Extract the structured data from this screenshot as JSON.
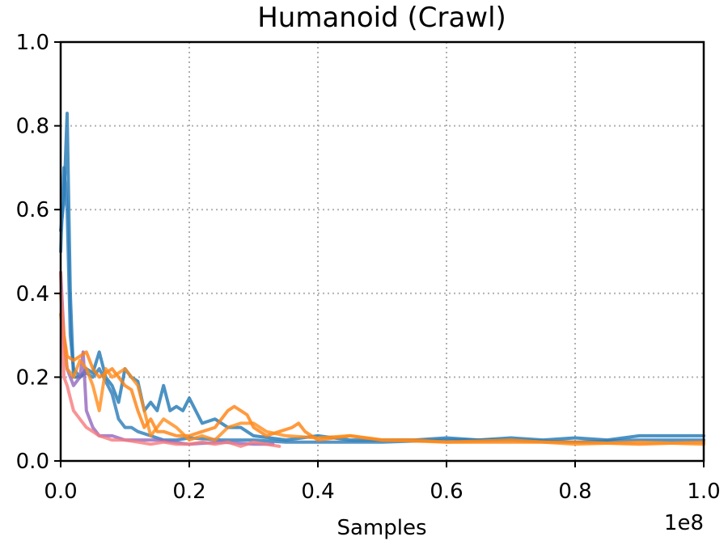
{
  "chart_data": {
    "type": "line",
    "title": "Humanoid (Crawl)",
    "xlabel": "Samples",
    "ylabel": "",
    "x_offset_text": "1e8",
    "xlim": [
      0.0,
      1.0
    ],
    "ylim": [
      0.0,
      1.0
    ],
    "x_ticks": [
      0.0,
      0.2,
      0.4,
      0.6,
      0.8,
      1.0
    ],
    "y_ticks": [
      0.0,
      0.2,
      0.4,
      0.6,
      0.8,
      1.0
    ],
    "x_tick_labels": [
      "0.0",
      "0.2",
      "0.4",
      "0.6",
      "0.8",
      "1.0"
    ],
    "y_tick_labels": [
      "0.0",
      "0.2",
      "0.4",
      "0.6",
      "0.8",
      "1.0"
    ],
    "grid": true,
    "series": [
      {
        "color": "#1f77b4",
        "x": [
          0.0,
          0.005,
          0.01,
          0.015,
          0.02,
          0.03,
          0.04,
          0.05,
          0.06,
          0.07,
          0.08,
          0.09,
          0.1,
          0.11,
          0.12,
          0.13,
          0.14,
          0.15,
          0.16,
          0.17,
          0.18,
          0.19,
          0.2,
          0.22,
          0.24,
          0.26,
          0.28,
          0.3,
          0.35,
          0.4,
          0.45,
          0.5,
          0.55,
          0.6,
          0.65,
          0.7,
          0.75,
          0.8,
          0.85,
          0.9,
          0.95,
          1.0
        ],
        "y": [
          0.55,
          0.62,
          0.83,
          0.4,
          0.2,
          0.2,
          0.22,
          0.21,
          0.26,
          0.2,
          0.18,
          0.14,
          0.22,
          0.2,
          0.19,
          0.12,
          0.14,
          0.12,
          0.18,
          0.12,
          0.13,
          0.12,
          0.15,
          0.09,
          0.1,
          0.08,
          0.08,
          0.06,
          0.05,
          0.06,
          0.05,
          0.05,
          0.05,
          0.055,
          0.05,
          0.055,
          0.05,
          0.055,
          0.05,
          0.06,
          0.06,
          0.06
        ]
      },
      {
        "color": "#2a7ab8",
        "x": [
          0.0,
          0.005,
          0.01,
          0.015,
          0.02,
          0.03,
          0.04,
          0.05,
          0.06,
          0.07,
          0.08,
          0.09,
          0.1,
          0.11,
          0.12,
          0.14,
          0.16,
          0.18,
          0.2,
          0.25,
          0.3,
          0.35,
          0.4,
          0.5,
          0.6,
          0.7,
          0.8,
          0.9,
          1.0
        ],
        "y": [
          0.5,
          0.7,
          0.6,
          0.3,
          0.22,
          0.2,
          0.21,
          0.2,
          0.22,
          0.19,
          0.16,
          0.1,
          0.08,
          0.08,
          0.07,
          0.06,
          0.05,
          0.05,
          0.055,
          0.05,
          0.05,
          0.045,
          0.045,
          0.045,
          0.05,
          0.05,
          0.045,
          0.05,
          0.05
        ]
      },
      {
        "color": "#9467bd",
        "x": [
          0.0,
          0.005,
          0.01,
          0.02,
          0.03,
          0.035,
          0.04,
          0.05,
          0.06,
          0.08,
          0.1,
          0.12,
          0.15,
          0.2,
          0.25,
          0.3,
          0.33
        ],
        "y": [
          0.45,
          0.3,
          0.22,
          0.18,
          0.2,
          0.26,
          0.12,
          0.08,
          0.06,
          0.06,
          0.05,
          0.05,
          0.05,
          0.04,
          0.045,
          0.04,
          0.04
        ]
      },
      {
        "color": "#ff7f0e",
        "x": [
          0.0,
          0.005,
          0.01,
          0.02,
          0.03,
          0.04,
          0.05,
          0.06,
          0.07,
          0.08,
          0.09,
          0.1,
          0.11,
          0.12,
          0.13,
          0.14,
          0.15,
          0.16,
          0.18,
          0.2,
          0.22,
          0.24,
          0.26,
          0.27,
          0.28,
          0.29,
          0.3,
          0.32,
          0.34,
          0.36,
          0.37,
          0.38,
          0.4,
          0.45,
          0.5,
          0.55,
          0.6,
          0.7,
          0.8,
          0.9,
          1.0
        ],
        "y": [
          0.4,
          0.3,
          0.25,
          0.24,
          0.25,
          0.26,
          0.22,
          0.2,
          0.21,
          0.22,
          0.2,
          0.18,
          0.17,
          0.12,
          0.08,
          0.1,
          0.07,
          0.07,
          0.06,
          0.06,
          0.07,
          0.08,
          0.12,
          0.13,
          0.12,
          0.11,
          0.08,
          0.06,
          0.07,
          0.08,
          0.09,
          0.07,
          0.05,
          0.06,
          0.05,
          0.05,
          0.045,
          0.045,
          0.045,
          0.04,
          0.045
        ]
      },
      {
        "color": "#ff8c1a",
        "x": [
          0.0,
          0.01,
          0.02,
          0.03,
          0.04,
          0.05,
          0.06,
          0.07,
          0.08,
          0.1,
          0.12,
          0.13,
          0.14,
          0.16,
          0.18,
          0.2,
          0.22,
          0.24,
          0.26,
          0.28,
          0.3,
          0.32,
          0.35,
          0.4,
          0.45,
          0.5,
          0.6,
          0.7,
          0.8,
          0.9,
          1.0
        ],
        "y": [
          0.35,
          0.22,
          0.2,
          0.24,
          0.22,
          0.18,
          0.12,
          0.22,
          0.2,
          0.22,
          0.18,
          0.12,
          0.06,
          0.1,
          0.08,
          0.05,
          0.06,
          0.05,
          0.08,
          0.09,
          0.09,
          0.07,
          0.06,
          0.055,
          0.06,
          0.05,
          0.045,
          0.05,
          0.04,
          0.045,
          0.04
        ]
      },
      {
        "color": "#f7797d",
        "x": [
          0.0,
          0.005,
          0.01,
          0.015,
          0.02,
          0.03,
          0.04,
          0.05,
          0.06,
          0.08,
          0.1,
          0.12,
          0.14,
          0.16,
          0.18,
          0.2,
          0.22,
          0.24,
          0.26,
          0.28,
          0.3,
          0.32,
          0.34
        ],
        "y": [
          0.45,
          0.2,
          0.18,
          0.15,
          0.12,
          0.1,
          0.08,
          0.07,
          0.06,
          0.05,
          0.05,
          0.045,
          0.04,
          0.045,
          0.04,
          0.04,
          0.045,
          0.04,
          0.045,
          0.035,
          0.045,
          0.04,
          0.035
        ]
      }
    ]
  }
}
